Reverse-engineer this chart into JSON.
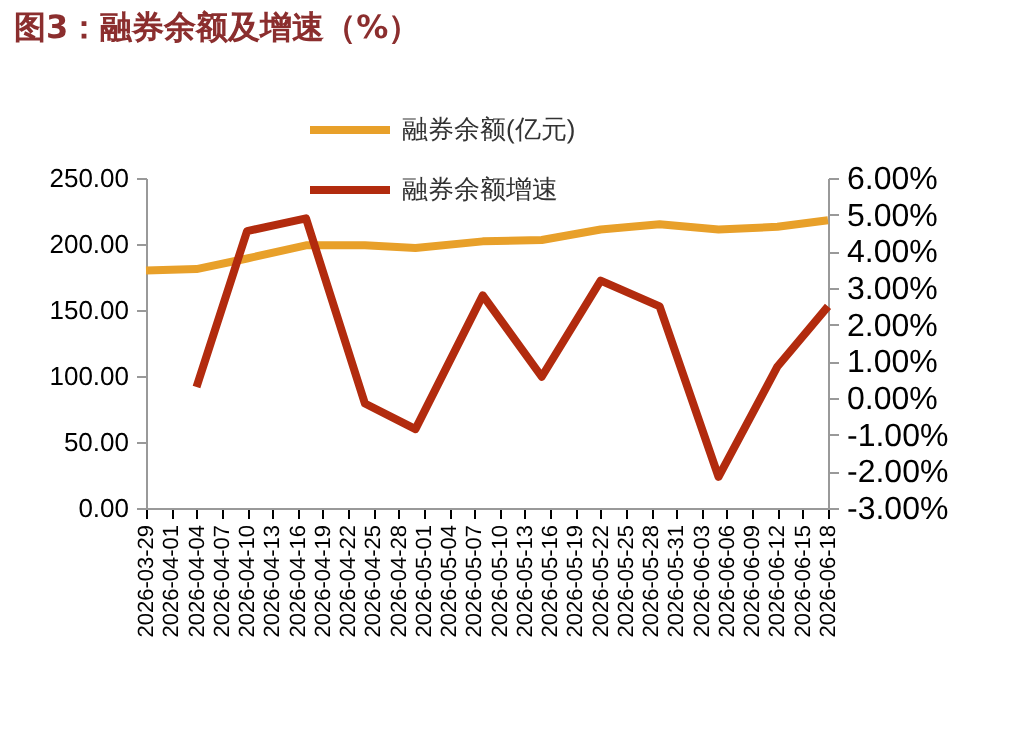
{
  "chart_data": {
    "type": "line",
    "title": "图3：融券余额及增速（%）",
    "xlim": [
      "2026-03-29",
      "2026-06-18"
    ],
    "xticks": [
      "2026-03-29",
      "2026-04-01",
      "2026-04-04",
      "2026-04-07",
      "2026-04-10",
      "2026-04-13",
      "2026-04-16",
      "2026-04-19",
      "2026-04-22",
      "2026-04-25",
      "2026-04-28",
      "2026-05-01",
      "2026-05-04",
      "2026-05-07",
      "2026-05-10",
      "2026-05-13",
      "2026-05-16",
      "2026-05-19",
      "2026-05-22",
      "2026-05-25",
      "2026-05-28",
      "2026-05-31",
      "2026-06-03",
      "2026-06-06",
      "2026-06-09",
      "2026-06-12",
      "2026-06-15",
      "2026-06-18"
    ],
    "ylim": [
      0,
      250
    ],
    "yticks": [
      {
        "value": 0,
        "label": "0.00"
      },
      {
        "value": 50,
        "label": "50.00"
      },
      {
        "value": 100,
        "label": "100.00"
      },
      {
        "value": 150,
        "label": "150.00"
      },
      {
        "value": 200,
        "label": "200.00"
      },
      {
        "value": 250,
        "label": "250.00"
      }
    ],
    "y2lim": [
      -3,
      6
    ],
    "y2ticks": [
      {
        "value": -3,
        "label": "-3.00%"
      },
      {
        "value": -2,
        "label": "-2.00%"
      },
      {
        "value": -1,
        "label": "-1.00%"
      },
      {
        "value": 0,
        "label": "0.00%"
      },
      {
        "value": 1,
        "label": "1.00%"
      },
      {
        "value": 2,
        "label": "2.00%"
      },
      {
        "value": 3,
        "label": "3.00%"
      },
      {
        "value": 4,
        "label": "4.00%"
      },
      {
        "value": 5,
        "label": "5.00%"
      },
      {
        "value": 6,
        "label": "6.00%"
      }
    ],
    "legend": "top",
    "grid": false,
    "series": [
      {
        "name": "融券余额(亿元)",
        "color": "#e8a02a",
        "x": [
          "2026-03-29",
          "2026-04-04",
          "2026-04-10",
          "2026-04-17",
          "2026-04-24",
          "2026-04-30",
          "2026-05-08",
          "2026-05-15",
          "2026-05-22",
          "2026-05-29",
          "2026-06-05",
          "2026-06-12",
          "2026-06-18"
        ],
        "values": [
          180,
          181,
          189,
          199,
          199,
          197,
          202,
          203,
          211,
          215,
          211,
          213,
          218
        ]
      },
      {
        "name": "融券余额增速",
        "color": "#b22b0e",
        "axis": "y2",
        "x": [
          "2026-04-04",
          "2026-04-10",
          "2026-04-17",
          "2026-04-24",
          "2026-04-30",
          "2026-05-08",
          "2026-05-15",
          "2026-05-22",
          "2026-05-29",
          "2026-06-05",
          "2026-06-12",
          "2026-06-18"
        ],
        "values": [
          0.3,
          4.55,
          4.9,
          -0.15,
          -0.85,
          2.8,
          0.58,
          3.2,
          2.5,
          -2.15,
          0.86,
          2.5
        ]
      }
    ]
  }
}
